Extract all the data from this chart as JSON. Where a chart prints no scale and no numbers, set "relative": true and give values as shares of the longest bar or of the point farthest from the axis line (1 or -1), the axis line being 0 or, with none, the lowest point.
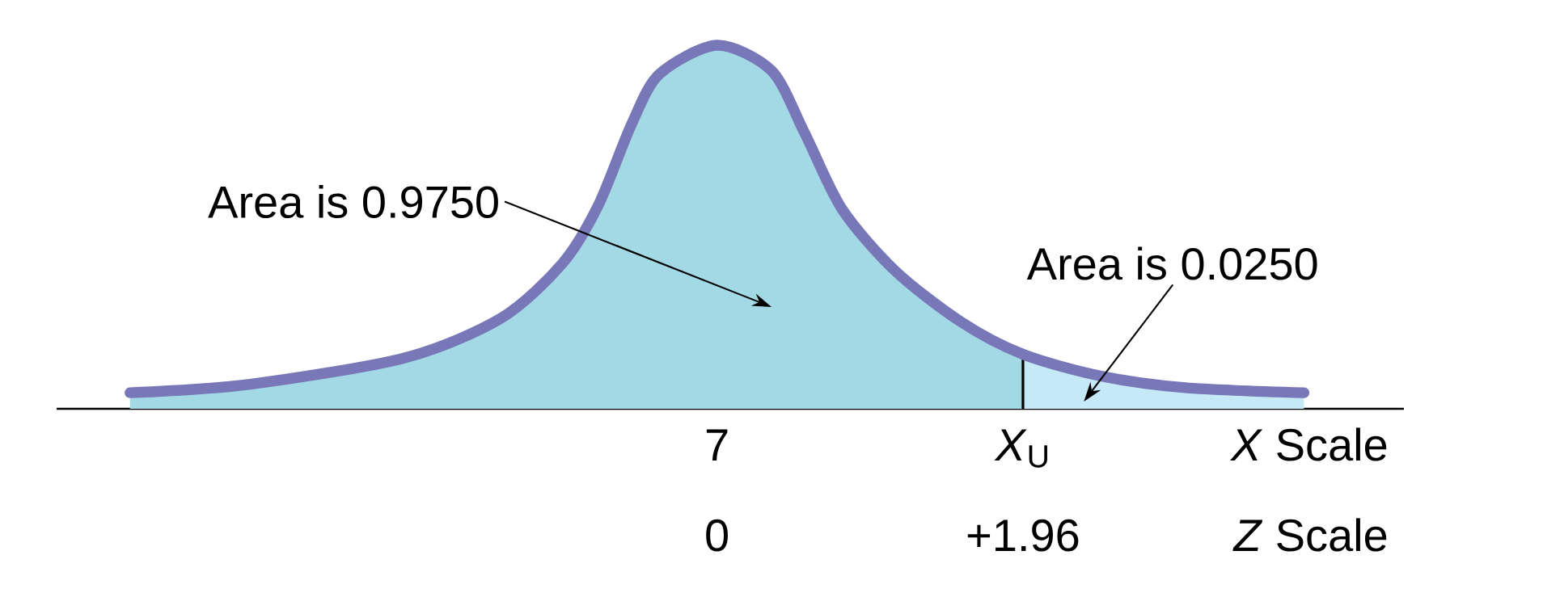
{
  "chart_data": {
    "type": "area",
    "relative": true,
    "xlim": [
      -4.23,
      4.4
    ],
    "xticks": [
      {
        "value": -3,
        "label": null
      },
      {
        "value": -2,
        "label": null
      },
      {
        "value": -1,
        "label": null
      },
      {
        "value": 0,
        "label": "0"
      },
      {
        "value": 1,
        "label": null
      },
      {
        "value": 1.96,
        "label": "+1.96"
      },
      {
        "value": 2,
        "label": null
      },
      {
        "value": 3,
        "label": null
      }
    ],
    "xlabel": "*Z* Scale",
    "x2label": "*X* Scale",
    "series": [
      {
        "color": "#a3d9e5",
        "x": [
          -3.76,
          -3.0,
          -2.0,
          -1.38,
          -0.99,
          -0.76,
          -0.55,
          -0.37,
          0,
          0.35,
          0.56,
          0.8,
          1.14,
          1.56,
          1.96
        ],
        "values": [
          0.044,
          0.067,
          0.14,
          0.25,
          0.4,
          0.56,
          0.78,
          0.92,
          1,
          0.93,
          0.76,
          0.55,
          0.38,
          0.24,
          0.15
        ]
      },
      {
        "color": "#c5e9f7",
        "x": [
          1.96,
          2.46,
          3.0,
          3.76
        ],
        "values": [
          0.15,
          0.09,
          0.058,
          0.044
        ]
      },
      {
        "type": "line",
        "color": "#7878b8",
        "x": [
          -3.76,
          -3.0,
          -2.0,
          -1.38,
          -0.99,
          -0.76,
          -0.55,
          -0.37,
          0,
          0.35,
          0.56,
          0.8,
          1.14,
          1.56,
          1.96,
          2.46,
          3.0,
          3.76
        ],
        "values": [
          0.044,
          0.067,
          0.14,
          0.25,
          0.4,
          0.56,
          0.78,
          0.92,
          1,
          0.93,
          0.76,
          0.55,
          0.38,
          0.24,
          0.15,
          0.09,
          0.058,
          0.044
        ]
      }
    ],
    "annotations": [
      "Area is 0.9750",
      {
        "text": "Area is 0.0250",
        "x": 2.35,
        "y": 0.02
      },
      {
        "text": "7",
        "x": 0,
        "y": 0
      },
      {
        "text": "*X*$_{U}$",
        "x": 1.96,
        "y": 0
      }
    ]
  }
}
